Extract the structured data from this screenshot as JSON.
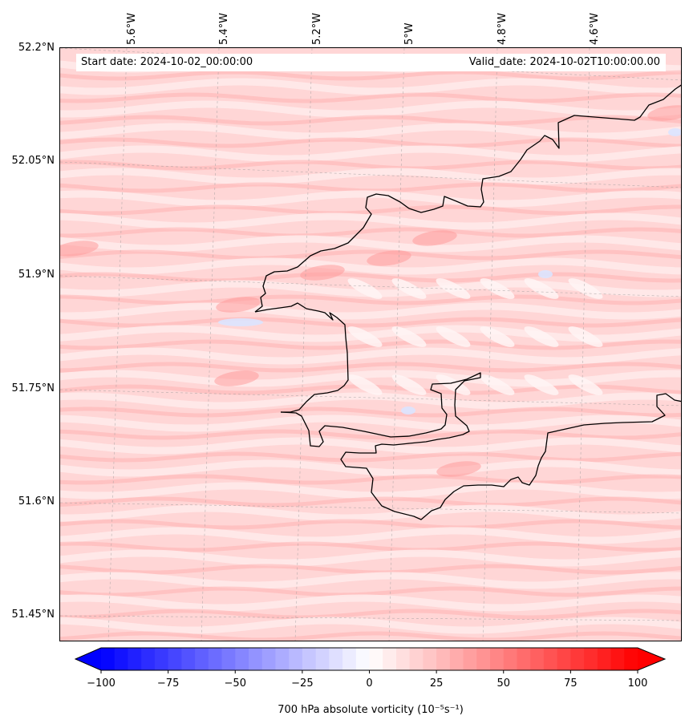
{
  "header": {
    "start_date": "Start date: 2024-10-02_00:00:00",
    "valid_date": "Valid_date: 2024-10-02T10:00:00.00"
  },
  "map": {
    "longitude_labels": [
      "5.6°W",
      "5.4°W",
      "5.2°W",
      "5°W",
      "4.8°W",
      "4.6°W"
    ],
    "latitude_labels": [
      "52.2°N",
      "52.05°N",
      "51.9°N",
      "51.75°N",
      "51.6°N",
      "51.45°N"
    ],
    "coastline_color": "#000000",
    "field_colors": {
      "base": "#ffd6d6",
      "light": "#ffeaea",
      "strong": "#ffb3b3",
      "negative": "#dbe4ff"
    }
  },
  "colorbar": {
    "min": -100,
    "max": 100,
    "step": 5,
    "ticks": [
      "−100",
      "−75",
      "−50",
      "−25",
      "0",
      "25",
      "50",
      "75",
      "100"
    ],
    "label": "700 hPa absolute vorticity (10⁻⁵s⁻¹)",
    "colormap": "bwr",
    "extend": "both"
  }
}
